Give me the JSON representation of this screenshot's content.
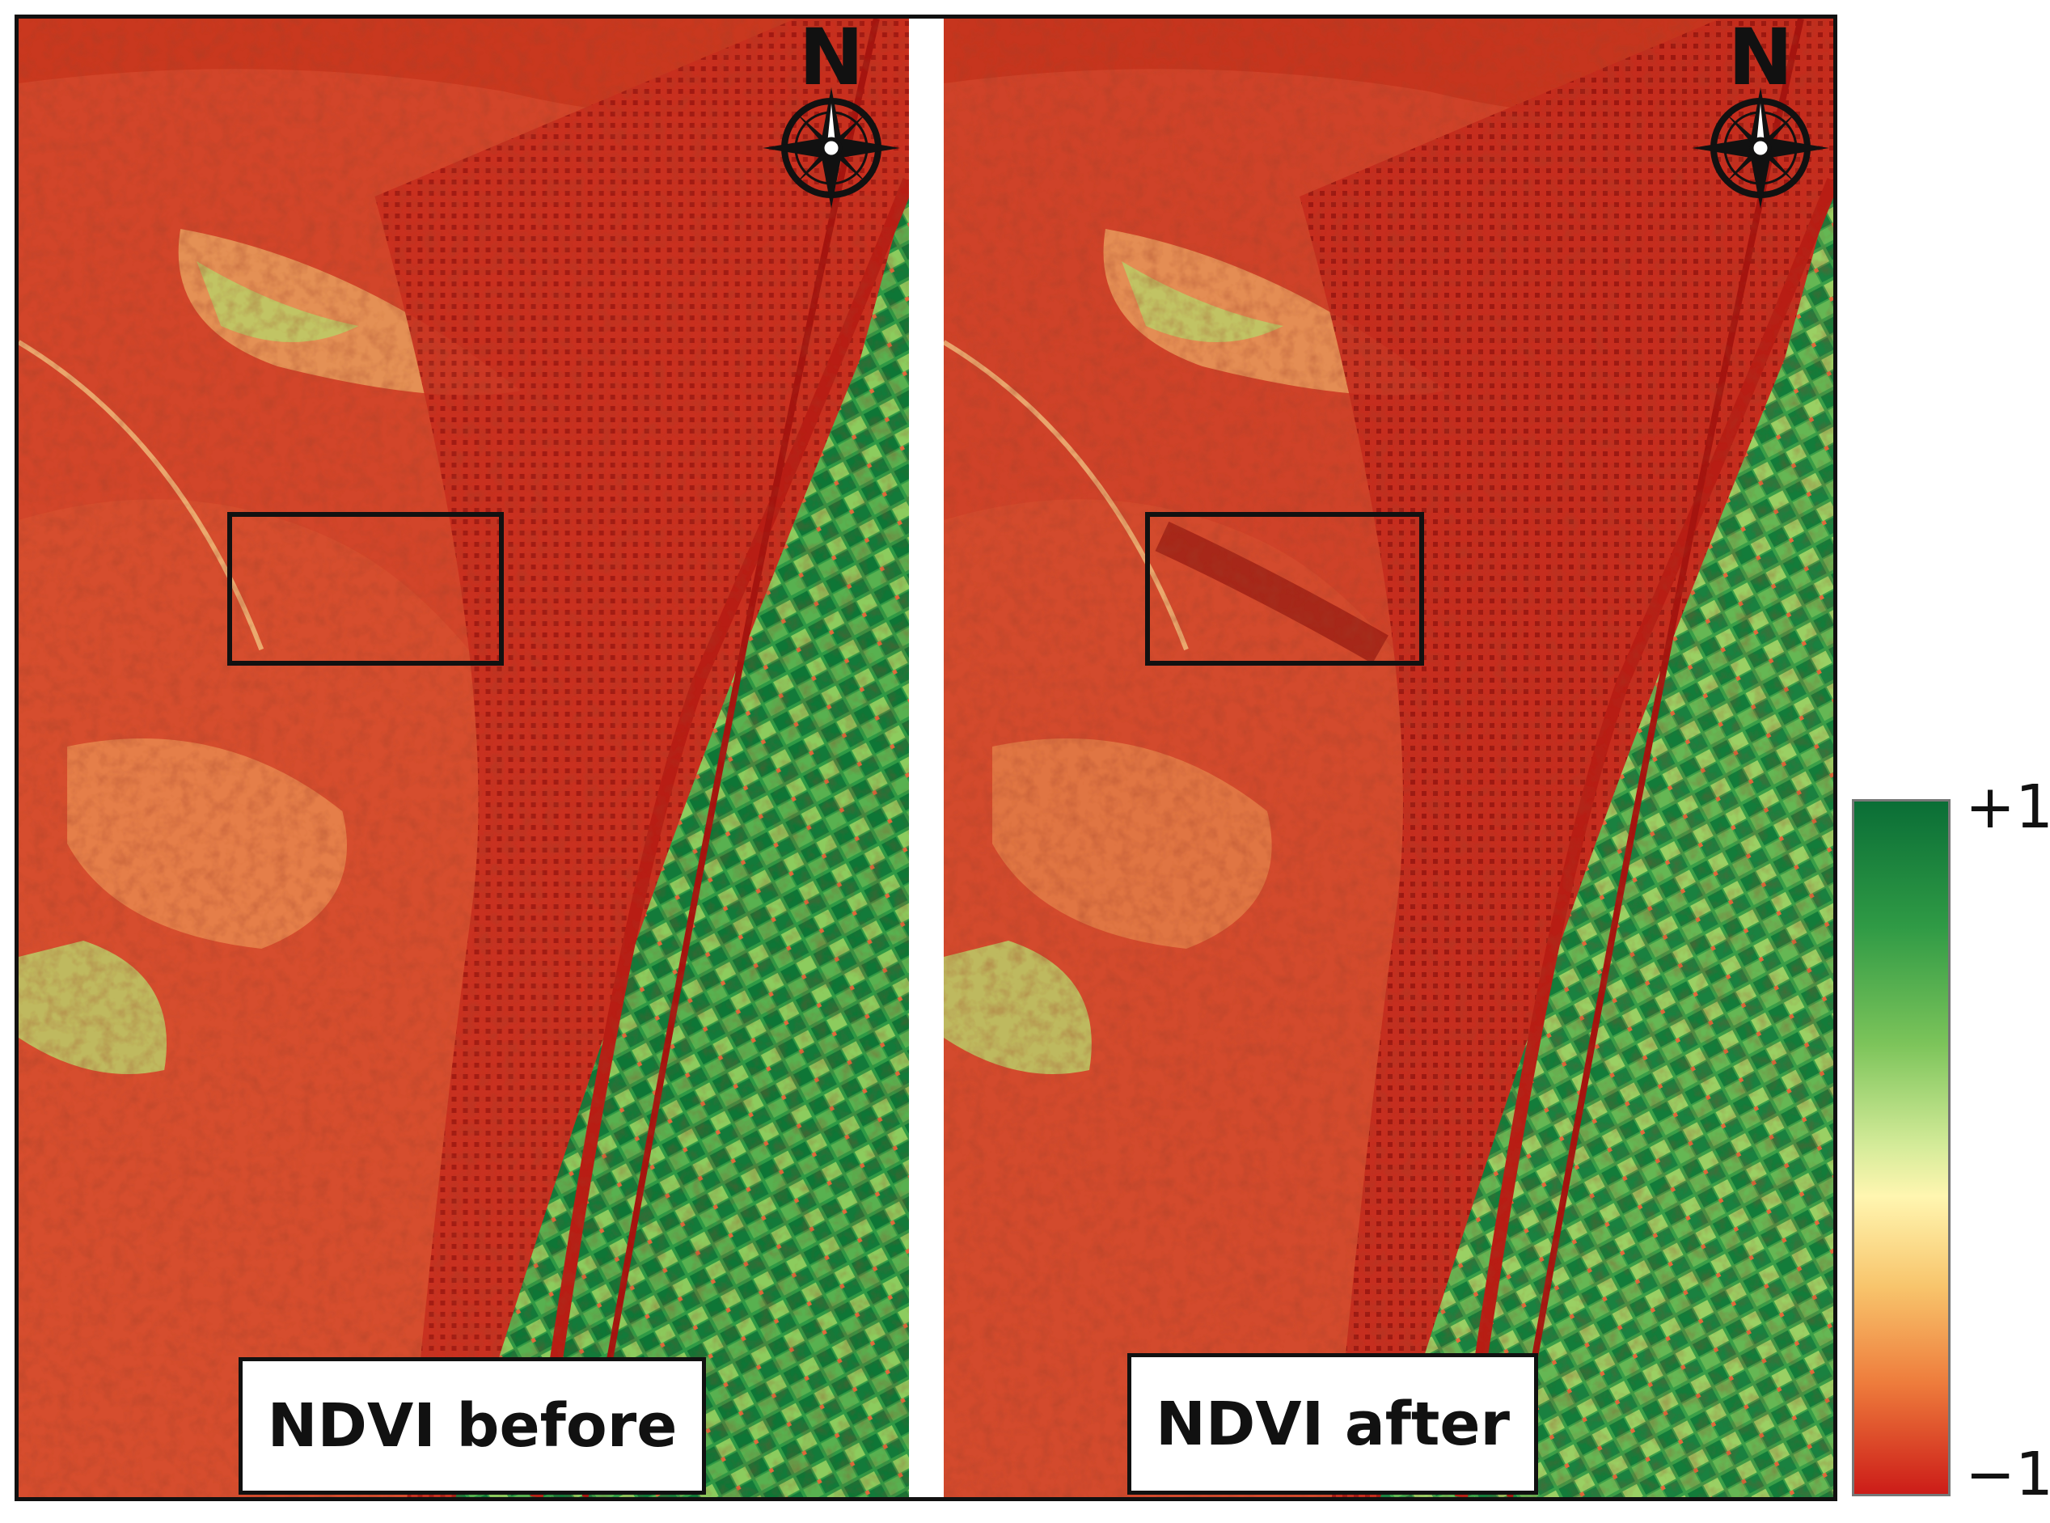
{
  "panels": [
    {
      "label": "NDVI before",
      "north_label": "N"
    },
    {
      "label": "NDVI after",
      "north_label": "N"
    }
  ],
  "legend": {
    "max_label": "+1",
    "min_label": "−1",
    "colors": [
      "#0a6e36",
      "#7cc45a",
      "#fff6b0",
      "#ee7c3c",
      "#cc1c18"
    ]
  },
  "colors": {
    "low_ndvi": "#cc3a22",
    "high_ndvi": "#0f7a3a",
    "frame": "#111111"
  },
  "icons": [
    "compass-rose-icon"
  ]
}
